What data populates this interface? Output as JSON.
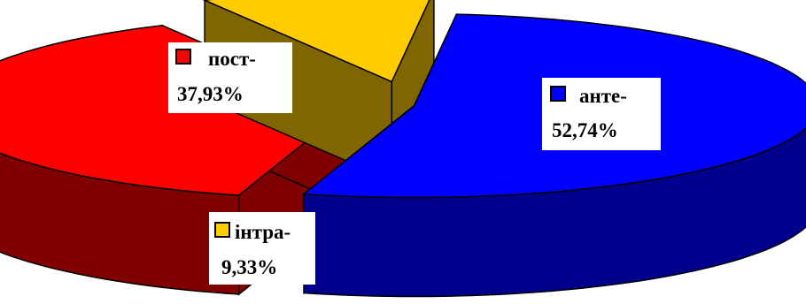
{
  "chart_data": {
    "type": "pie",
    "style": "3d-exploded",
    "slices": [
      {
        "category": "анте-",
        "value": 52.74,
        "value_label": "52,74%",
        "color": "#0000ff"
      },
      {
        "category": "пост-",
        "value": 37.93,
        "value_label": "37,93%",
        "color": "#ff0000"
      },
      {
        "category": "інтра-",
        "value": 9.33,
        "value_label": "9,33%",
        "color": "#ffcc00"
      }
    ]
  }
}
